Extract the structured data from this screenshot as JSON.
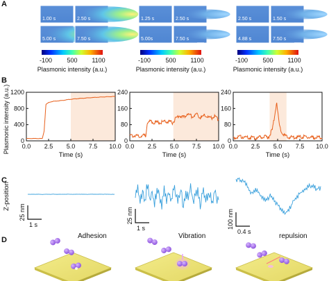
{
  "panels": {
    "a": "A",
    "b": "B",
    "c": "C",
    "d": "D"
  },
  "panel_a": {
    "groups": [
      {
        "times": [
          "1.00 s",
          "2.50 s",
          "5.00 s",
          "7.50 s"
        ]
      },
      {
        "times": [
          "1.25 s",
          "2.50 s",
          "5.00s",
          "7.50 s"
        ]
      },
      {
        "times": [
          "2.50 s",
          "1.50 s",
          "4.88 s",
          "7.50 s"
        ]
      }
    ],
    "colorbar_ticks": [
      "-100",
      "500",
      "1100"
    ],
    "colorbar_label": "Plasmonic intensity (a.u.)"
  },
  "chart_data": [
    {
      "type": "line",
      "title": "",
      "xlabel": "Time (s)",
      "ylabel": "Plasmonic intensity (a.u.)",
      "xlim": [
        0,
        10
      ],
      "ylim": [
        0,
        1200
      ],
      "xticks": [
        "0.0",
        "2.5",
        "5.0",
        "7.5",
        "10.0"
      ],
      "yticks": [
        "0",
        "400",
        "800",
        "1200"
      ],
      "highlight": [
        5.0,
        10.0
      ],
      "series": [
        {
          "color": "#e8601c",
          "x": [
            0,
            1.8,
            2.0,
            2.2,
            2.5,
            3,
            4,
            5,
            6,
            7,
            8,
            9,
            10
          ],
          "y": [
            60,
            60,
            250,
            900,
            950,
            980,
            1000,
            1030,
            1050,
            1065,
            1080,
            1090,
            1100
          ]
        }
      ]
    },
    {
      "type": "line",
      "title": "",
      "xlabel": "Time (s)",
      "ylabel": "",
      "xlim": [
        0,
        10
      ],
      "ylim": [
        0,
        240
      ],
      "xticks": [
        "0.0",
        "2.5",
        "5.0",
        "7.5",
        "10.0"
      ],
      "yticks": [
        "0",
        "80",
        "160",
        "240"
      ],
      "highlight": [
        4.9,
        10.0
      ],
      "series": [
        {
          "color": "#e8601c",
          "x": [
            0,
            1.8,
            1.95,
            2.2,
            3,
            4,
            4.8,
            5.2,
            5.6,
            6,
            6.5,
            7,
            7.5,
            8,
            8.5,
            9,
            9.5,
            10
          ],
          "y": [
            30,
            30,
            95,
            100,
            95,
            100,
            95,
            115,
            130,
            120,
            140,
            125,
            135,
            120,
            130,
            115,
            125,
            110
          ]
        }
      ]
    },
    {
      "type": "line",
      "title": "",
      "xlabel": "Time (s)",
      "ylabel": "",
      "xlim": [
        0,
        10
      ],
      "ylim": [
        0,
        240
      ],
      "xticks": [
        "0.0",
        "2.5",
        "5.0",
        "7.5",
        "10.0"
      ],
      "yticks": [
        "0",
        "80",
        "160",
        "240"
      ],
      "highlight": [
        4.1,
        6.0
      ],
      "series": [
        {
          "color": "#e8601c",
          "x": [
            0,
            1,
            2,
            3,
            4,
            4.4,
            4.6,
            4.8,
            4.9,
            5.0,
            5.2,
            5.5,
            6,
            7,
            8,
            9,
            10
          ],
          "y": [
            20,
            25,
            20,
            22,
            25,
            60,
            110,
            170,
            200,
            150,
            80,
            40,
            25,
            22,
            25,
            20,
            22
          ]
        }
      ]
    }
  ],
  "panel_c": {
    "ylabel": "Z-position",
    "traces": [
      {
        "scale_y": "25 nm",
        "scale_x": "1 s",
        "color": "#3aa0dc",
        "values": [
          0.5,
          0.52,
          0.48,
          0.51,
          0.49,
          0.5,
          0.53,
          0.49,
          0.5,
          0.51,
          0.48,
          0.5,
          0.52,
          0.49,
          0.51,
          0.5,
          0.47,
          0.5,
          0.52,
          0.49,
          0.5,
          0.51,
          0.49,
          0.5,
          0.52,
          0.5,
          0.48,
          0.51,
          0.5,
          0.49,
          0.51,
          0.5,
          0.49,
          0.52,
          0.5
        ]
      },
      {
        "scale_y": "25 nm",
        "scale_x": "1 s",
        "color": "#3aa0dc",
        "values": [
          0.55,
          0.3,
          0.7,
          0.4,
          0.65,
          0.2,
          0.6,
          0.45,
          0.75,
          0.35,
          0.5,
          0.8,
          0.3,
          0.6,
          0.4,
          0.7,
          0.25,
          0.55,
          0.65,
          0.35,
          0.85,
          0.45,
          0.6,
          0.3,
          0.7,
          0.5,
          0.4,
          0.75,
          0.35,
          0.55,
          0.65,
          0.45,
          0.7,
          0.4,
          0.6
        ]
      },
      {
        "scale_y": "100 nm",
        "scale_x": "0.4 s",
        "color": "#3aa0dc",
        "values": [
          0.15,
          0.1,
          0.18,
          0.12,
          0.2,
          0.3,
          0.45,
          0.4,
          0.35,
          0.42,
          0.48,
          0.55,
          0.6,
          0.58,
          0.5,
          0.55,
          0.65,
          0.72,
          0.8,
          0.85,
          0.9,
          0.88,
          0.8,
          0.7,
          0.6,
          0.55,
          0.45,
          0.4,
          0.35,
          0.3,
          0.25,
          0.3,
          0.28,
          0.35,
          0.32
        ]
      }
    ]
  },
  "panel_d": {
    "labels": [
      "Adhesion",
      "Vibration",
      "repulsion"
    ]
  }
}
